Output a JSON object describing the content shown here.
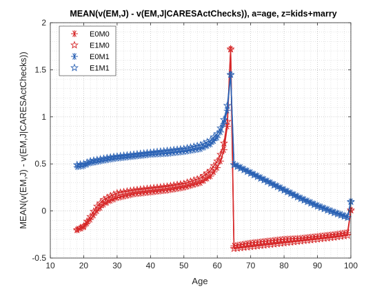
{
  "chart_data": {
    "type": "line",
    "title": "MEAN(v(EM,J) - v(EM,J|CARESActChecks)), a=age, z=kids+marry",
    "xlabel": "Age",
    "ylabel": "MEAN(v(EM,J) - v(EM,J|CARESActChecks))",
    "xlim": [
      10,
      100
    ],
    "ylim": [
      -0.5,
      2
    ],
    "xticks": [
      10,
      20,
      30,
      40,
      50,
      60,
      70,
      80,
      90,
      100
    ],
    "yticks": [
      -0.5,
      0,
      0.5,
      1,
      1.5,
      2
    ],
    "xtick_labels": [
      "10",
      "20",
      "30",
      "40",
      "50",
      "60",
      "70",
      "80",
      "90",
      "100"
    ],
    "ytick_labels": [
      "-0.5",
      "0",
      "0.5",
      "1",
      "1.5",
      "2"
    ],
    "grid": true,
    "minor_grid": true,
    "legend_position": "top-left",
    "series": [
      {
        "name": "E0M0",
        "color": "#d62728",
        "marker": "asterisk",
        "points": [
          [
            18,
            -0.2
          ],
          [
            20,
            -0.17
          ],
          [
            22,
            -0.09
          ],
          [
            24,
            0.0
          ],
          [
            26,
            0.07
          ],
          [
            28,
            0.11
          ],
          [
            30,
            0.14
          ],
          [
            35,
            0.18
          ],
          [
            40,
            0.2
          ],
          [
            45,
            0.22
          ],
          [
            50,
            0.25
          ],
          [
            55,
            0.3
          ],
          [
            58,
            0.37
          ],
          [
            60,
            0.46
          ],
          [
            61,
            0.53
          ],
          [
            62,
            0.65
          ],
          [
            63,
            0.9
          ],
          [
            64,
            1.72
          ],
          [
            65,
            -0.37
          ],
          [
            70,
            -0.34
          ],
          [
            75,
            -0.32
          ],
          [
            80,
            -0.3
          ],
          [
            85,
            -0.29
          ],
          [
            90,
            -0.27
          ],
          [
            95,
            -0.25
          ],
          [
            99,
            -0.23
          ],
          [
            100,
            0.01
          ]
        ]
      },
      {
        "name": "E1M0",
        "color": "#d62728",
        "marker": "star",
        "points": [
          [
            18,
            -0.2
          ],
          [
            20,
            -0.16
          ],
          [
            22,
            -0.06
          ],
          [
            24,
            0.05
          ],
          [
            26,
            0.12
          ],
          [
            28,
            0.16
          ],
          [
            30,
            0.19
          ],
          [
            35,
            0.22
          ],
          [
            40,
            0.24
          ],
          [
            45,
            0.26
          ],
          [
            50,
            0.29
          ],
          [
            55,
            0.35
          ],
          [
            58,
            0.43
          ],
          [
            60,
            0.53
          ],
          [
            61,
            0.6
          ],
          [
            62,
            0.72
          ],
          [
            63,
            0.95
          ],
          [
            64,
            1.72
          ],
          [
            65,
            -0.4
          ],
          [
            70,
            -0.38
          ],
          [
            75,
            -0.36
          ],
          [
            80,
            -0.34
          ],
          [
            85,
            -0.32
          ],
          [
            90,
            -0.3
          ],
          [
            95,
            -0.28
          ],
          [
            99,
            -0.26
          ],
          [
            100,
            0.01
          ]
        ]
      },
      {
        "name": "E0M1",
        "color": "#2b62b4",
        "marker": "asterisk",
        "points": [
          [
            18,
            0.47
          ],
          [
            20,
            0.48
          ],
          [
            22,
            0.51
          ],
          [
            25,
            0.53
          ],
          [
            28,
            0.55
          ],
          [
            30,
            0.56
          ],
          [
            35,
            0.58
          ],
          [
            40,
            0.6
          ],
          [
            45,
            0.61
          ],
          [
            50,
            0.63
          ],
          [
            55,
            0.66
          ],
          [
            58,
            0.71
          ],
          [
            60,
            0.78
          ],
          [
            61,
            0.84
          ],
          [
            62,
            0.93
          ],
          [
            63,
            1.07
          ],
          [
            64,
            1.45
          ],
          [
            65,
            0.5
          ],
          [
            70,
            0.41
          ],
          [
            75,
            0.32
          ],
          [
            80,
            0.23
          ],
          [
            85,
            0.14
          ],
          [
            90,
            0.06
          ],
          [
            95,
            -0.01
          ],
          [
            99,
            -0.06
          ],
          [
            100,
            0.1
          ]
        ]
      },
      {
        "name": "E1M1",
        "color": "#2b62b4",
        "marker": "star",
        "points": [
          [
            18,
            0.49
          ],
          [
            20,
            0.5
          ],
          [
            22,
            0.53
          ],
          [
            25,
            0.55
          ],
          [
            28,
            0.57
          ],
          [
            30,
            0.58
          ],
          [
            35,
            0.6
          ],
          [
            40,
            0.62
          ],
          [
            45,
            0.64
          ],
          [
            50,
            0.66
          ],
          [
            55,
            0.7
          ],
          [
            58,
            0.75
          ],
          [
            60,
            0.82
          ],
          [
            61,
            0.88
          ],
          [
            62,
            0.97
          ],
          [
            63,
            1.12
          ],
          [
            64,
            1.45
          ],
          [
            65,
            0.49
          ],
          [
            70,
            0.4
          ],
          [
            75,
            0.31
          ],
          [
            80,
            0.22
          ],
          [
            85,
            0.13
          ],
          [
            90,
            0.05
          ],
          [
            95,
            -0.02
          ],
          [
            99,
            -0.07
          ],
          [
            100,
            0.1
          ]
        ]
      }
    ]
  }
}
